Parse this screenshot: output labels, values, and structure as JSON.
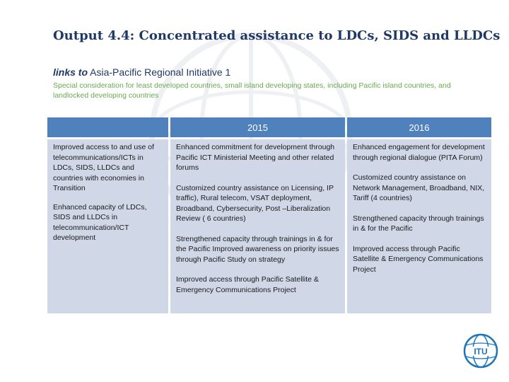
{
  "title": "Output 4.4: Concentrated assistance to LDCs, SIDS and LLDCs",
  "links": {
    "lead": "links to",
    "text": "Asia-Pacific Regional Initiative 1"
  },
  "special_consideration": "Special consideration for least developed countries, small island developing states, including Pacific island countries, and landlocked developing countries",
  "table": {
    "headers": [
      "",
      "2015",
      "2016"
    ],
    "col1": [
      "Improved access to and use of telecommunications/ICTs in LDCs, SIDS, LLDCs and countries with economies in Transition",
      "Enhanced capacity of LDCs, SIDS and LLDCs in telecommunication/ICT development"
    ],
    "col2": [
      "Enhanced commitment  for development through Pacific ICT Ministerial Meeting and other related forums",
      "Customized country assistance on Licensing, IP traffic), Rural telecom, VSAT deployment, Broadband, Cybersecurity, Post –Liberalization Review ( 6 countries)",
      "Strengthened capacity through trainings  in & for the Pacific Improved awareness on priority issues through Pacific Study on strategy",
      "Improved access through Pacific Satellite & Emergency Communications Project"
    ],
    "col3": [
      "Enhanced engagement  for development through regional dialogue (PITA Forum)",
      "Customized country assistance on Network Management, Broadband, NIX, Tariff (4 countries)",
      "Strengthened capacity through trainings in & for the Pacific",
      "Improved access through Pacific Satellite & Emergency Communications Project"
    ]
  },
  "logo": {
    "icon": "itu-logo",
    "text": "ITU",
    "color": "#1b75bb"
  },
  "colors": {
    "title": "#1f3864",
    "special": "#6aa84f",
    "header_bg": "#4f81bd",
    "cell_bg": "#d0d8e8"
  }
}
